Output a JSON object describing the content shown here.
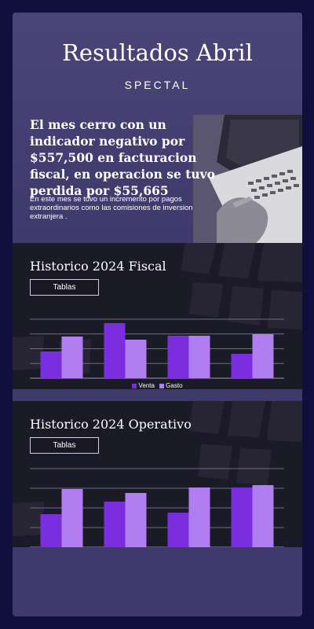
{
  "hero": {
    "title": "Resultados Abril",
    "subtitle": "SPECTAL",
    "headline": "El mes cerro con un indicador negativo por $557,500 en facturacion fiscal, en operacion se tuvo perdida por  $55,665",
    "body": "En este mes se tuvo  un incremento por pagos extraordinarios como las comisiones de inversion extranjera ."
  },
  "fiscal": {
    "title": "Historico 2024 Fiscal",
    "tab_label": "Tablas",
    "legend": [
      "Venta",
      "Gasto"
    ]
  },
  "operativo": {
    "title": "Historico 2024 Operativo",
    "tab_label": "Tablas"
  },
  "colors": {
    "venta": "#7a2ee0",
    "gasto": "#b07ef0",
    "background": "#0f0f3d",
    "card": "#3f3a6b"
  },
  "chart_data": [
    {
      "type": "bar",
      "categories": [
        "",
        "",
        "",
        ""
      ],
      "series": [
        {
          "name": "Venta",
          "values": [
            34,
            70,
            54,
            31
          ]
        },
        {
          "name": "Gasto",
          "values": [
            53,
            49,
            54,
            56
          ]
        }
      ],
      "title": "Historico 2024 Fiscal",
      "ylim": [
        0,
        75
      ],
      "grid": true,
      "legend": "bottom"
    },
    {
      "type": "bar",
      "categories": [
        "",
        "",
        "",
        ""
      ],
      "series": [
        {
          "values": [
            42,
            58,
            44,
            76
          ]
        },
        {
          "values": [
            74,
            69,
            76,
            79
          ]
        }
      ],
      "title": "Historico 2024 Operativo",
      "ylim": [
        0,
        100
      ],
      "grid": true
    }
  ]
}
